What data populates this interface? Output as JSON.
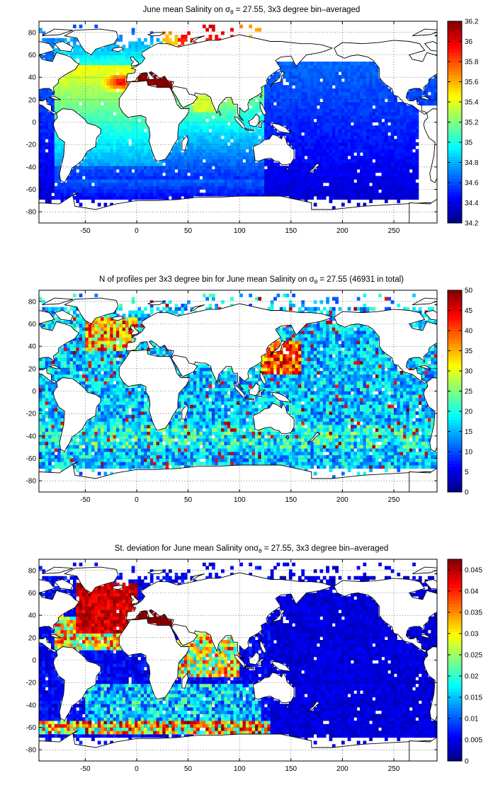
{
  "chart_data": [
    {
      "type": "heatmap",
      "title_prefix": "June mean Salinity on ",
      "title_suffix": " = 27.55, 3x3 degree bin–averaged",
      "xlim": [
        -95,
        292
      ],
      "ylim": [
        -90,
        90
      ],
      "xticks": [
        -50,
        0,
        50,
        100,
        150,
        200,
        250
      ],
      "yticks": [
        -80,
        -60,
        -40,
        -20,
        0,
        20,
        40,
        60,
        80
      ],
      "grid": true,
      "colorbar": {
        "min": 34.2,
        "max": 36.2,
        "ticks": [
          "34.2",
          "34.4",
          "34.6",
          "34.8",
          "35",
          "35.2",
          "35.4",
          "35.6",
          "35.8",
          "36",
          "36.2"
        ],
        "colormap": "jet"
      }
    },
    {
      "type": "heatmap",
      "title_prefix": "N of profiles per 3x3 degree bin for June mean Salinity on ",
      "title_suffix": " = 27.55 (46931 in total)",
      "xlim": [
        -95,
        292
      ],
      "ylim": [
        -90,
        90
      ],
      "xticks": [
        -50,
        0,
        50,
        100,
        150,
        200,
        250
      ],
      "yticks": [
        -80,
        -60,
        -40,
        -20,
        0,
        20,
        40,
        60,
        80
      ],
      "grid": true,
      "colorbar": {
        "min": 0,
        "max": 50,
        "ticks": [
          "0",
          "5",
          "10",
          "15",
          "20",
          "25",
          "30",
          "35",
          "40",
          "45",
          "50"
        ],
        "colormap": "jet"
      }
    },
    {
      "type": "heatmap",
      "title_prefix": "St. deviation for June mean Salinity on",
      "title_suffix": " = 27.55, 3x3 degree bin–averaged",
      "xlim": [
        -95,
        292
      ],
      "ylim": [
        -90,
        90
      ],
      "xticks": [
        -50,
        0,
        50,
        100,
        150,
        200,
        250
      ],
      "yticks": [
        -80,
        -60,
        -40,
        -20,
        0,
        20,
        40,
        60,
        80
      ],
      "grid": true,
      "colorbar": {
        "min": 0,
        "max": 0.0475,
        "ticks": [
          "0",
          "0.005",
          "0.01",
          "0.015",
          "0.02",
          "0.025",
          "0.03",
          "0.035",
          "0.04",
          "0.045"
        ],
        "colormap": "jet"
      }
    }
  ],
  "symbols": {
    "sigma": "σ",
    "theta": "θ"
  }
}
